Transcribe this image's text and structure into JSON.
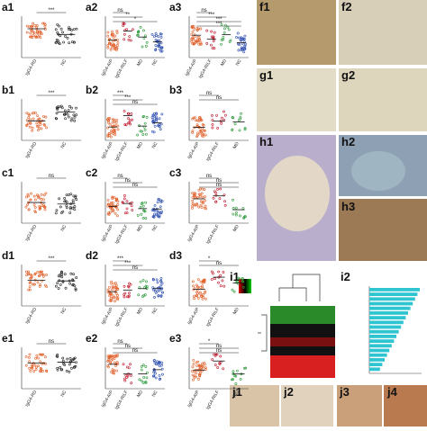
{
  "panels": [
    {
      "label": "a1",
      "categories": [
        "IgG4-RD",
        "NC"
      ],
      "sig": [
        "***"
      ]
    },
    {
      "label": "a2",
      "categories": [
        "IgG4-AIP",
        "IgG4-RILF",
        "MD",
        "NC"
      ],
      "sig": [
        "ns",
        "**",
        "*"
      ]
    },
    {
      "label": "a3",
      "categories": [
        "IgG4-AIP",
        "IgG4-RILF",
        "MD",
        "NC"
      ],
      "sig": [
        "ns",
        "***",
        "***",
        "***"
      ]
    },
    {
      "label": "b1",
      "categories": [
        "IgG4-RD",
        "NC"
      ],
      "sig": [
        "***"
      ]
    },
    {
      "label": "b2",
      "categories": [
        "IgG4-AIP",
        "IgG4-RILF",
        "MD",
        "NC"
      ],
      "sig": [
        "***",
        "***",
        "ns"
      ]
    },
    {
      "label": "b3",
      "categories": [
        "IgG4-AIP",
        "IgG4-RILF",
        "MD"
      ],
      "sig": [
        "ns",
        "ns"
      ]
    },
    {
      "label": "c1",
      "categories": [
        "IgG4-RD",
        "NC"
      ],
      "sig": [
        "ns"
      ]
    },
    {
      "label": "c2",
      "categories": [
        "IgG4-AIP",
        "IgG4-RILF",
        "MD",
        "NC"
      ],
      "sig": [
        "ns",
        "ns",
        "ns"
      ]
    },
    {
      "label": "c3",
      "categories": [
        "IgG4-AIP",
        "IgG4-RILF",
        "MD"
      ],
      "sig": [
        "ns",
        "ns",
        "ns"
      ]
    },
    {
      "label": "d1",
      "categories": [
        "IgG4-RD",
        "NC"
      ],
      "sig": [
        "***"
      ]
    },
    {
      "label": "d2",
      "categories": [
        "IgG4-AIP",
        "IgG4-RILF",
        "MD",
        "NC"
      ],
      "sig": [
        "***",
        "***",
        "ns"
      ]
    },
    {
      "label": "d3",
      "categories": [
        "IgG4-AIP",
        "IgG4-RILF",
        "MD"
      ],
      "sig": [
        "*",
        "ns"
      ]
    },
    {
      "label": "e1",
      "categories": [
        "IgG4-RD",
        "NC"
      ],
      "sig": [
        "ns"
      ]
    },
    {
      "label": "e2",
      "categories": [
        "IgG4-AIP",
        "IgG4-RILF",
        "MD",
        "NC"
      ],
      "sig": [
        "ns",
        "ns",
        "ns"
      ]
    },
    {
      "label": "e3",
      "categories": [
        "IgG4-AIP",
        "IgG4-RILF",
        "MD"
      ],
      "sig": [
        "*",
        "ns",
        "ns"
      ]
    }
  ],
  "images": [
    {
      "label": "f1"
    },
    {
      "label": "f2"
    },
    {
      "label": "g1"
    },
    {
      "label": "g2"
    },
    {
      "label": "h1"
    },
    {
      "label": "h2"
    },
    {
      "label": "h3"
    },
    {
      "label": "i1"
    },
    {
      "label": "i2"
    },
    {
      "label": "j1"
    },
    {
      "label": "j2"
    },
    {
      "label": "j3"
    },
    {
      "label": "j4"
    }
  ]
}
